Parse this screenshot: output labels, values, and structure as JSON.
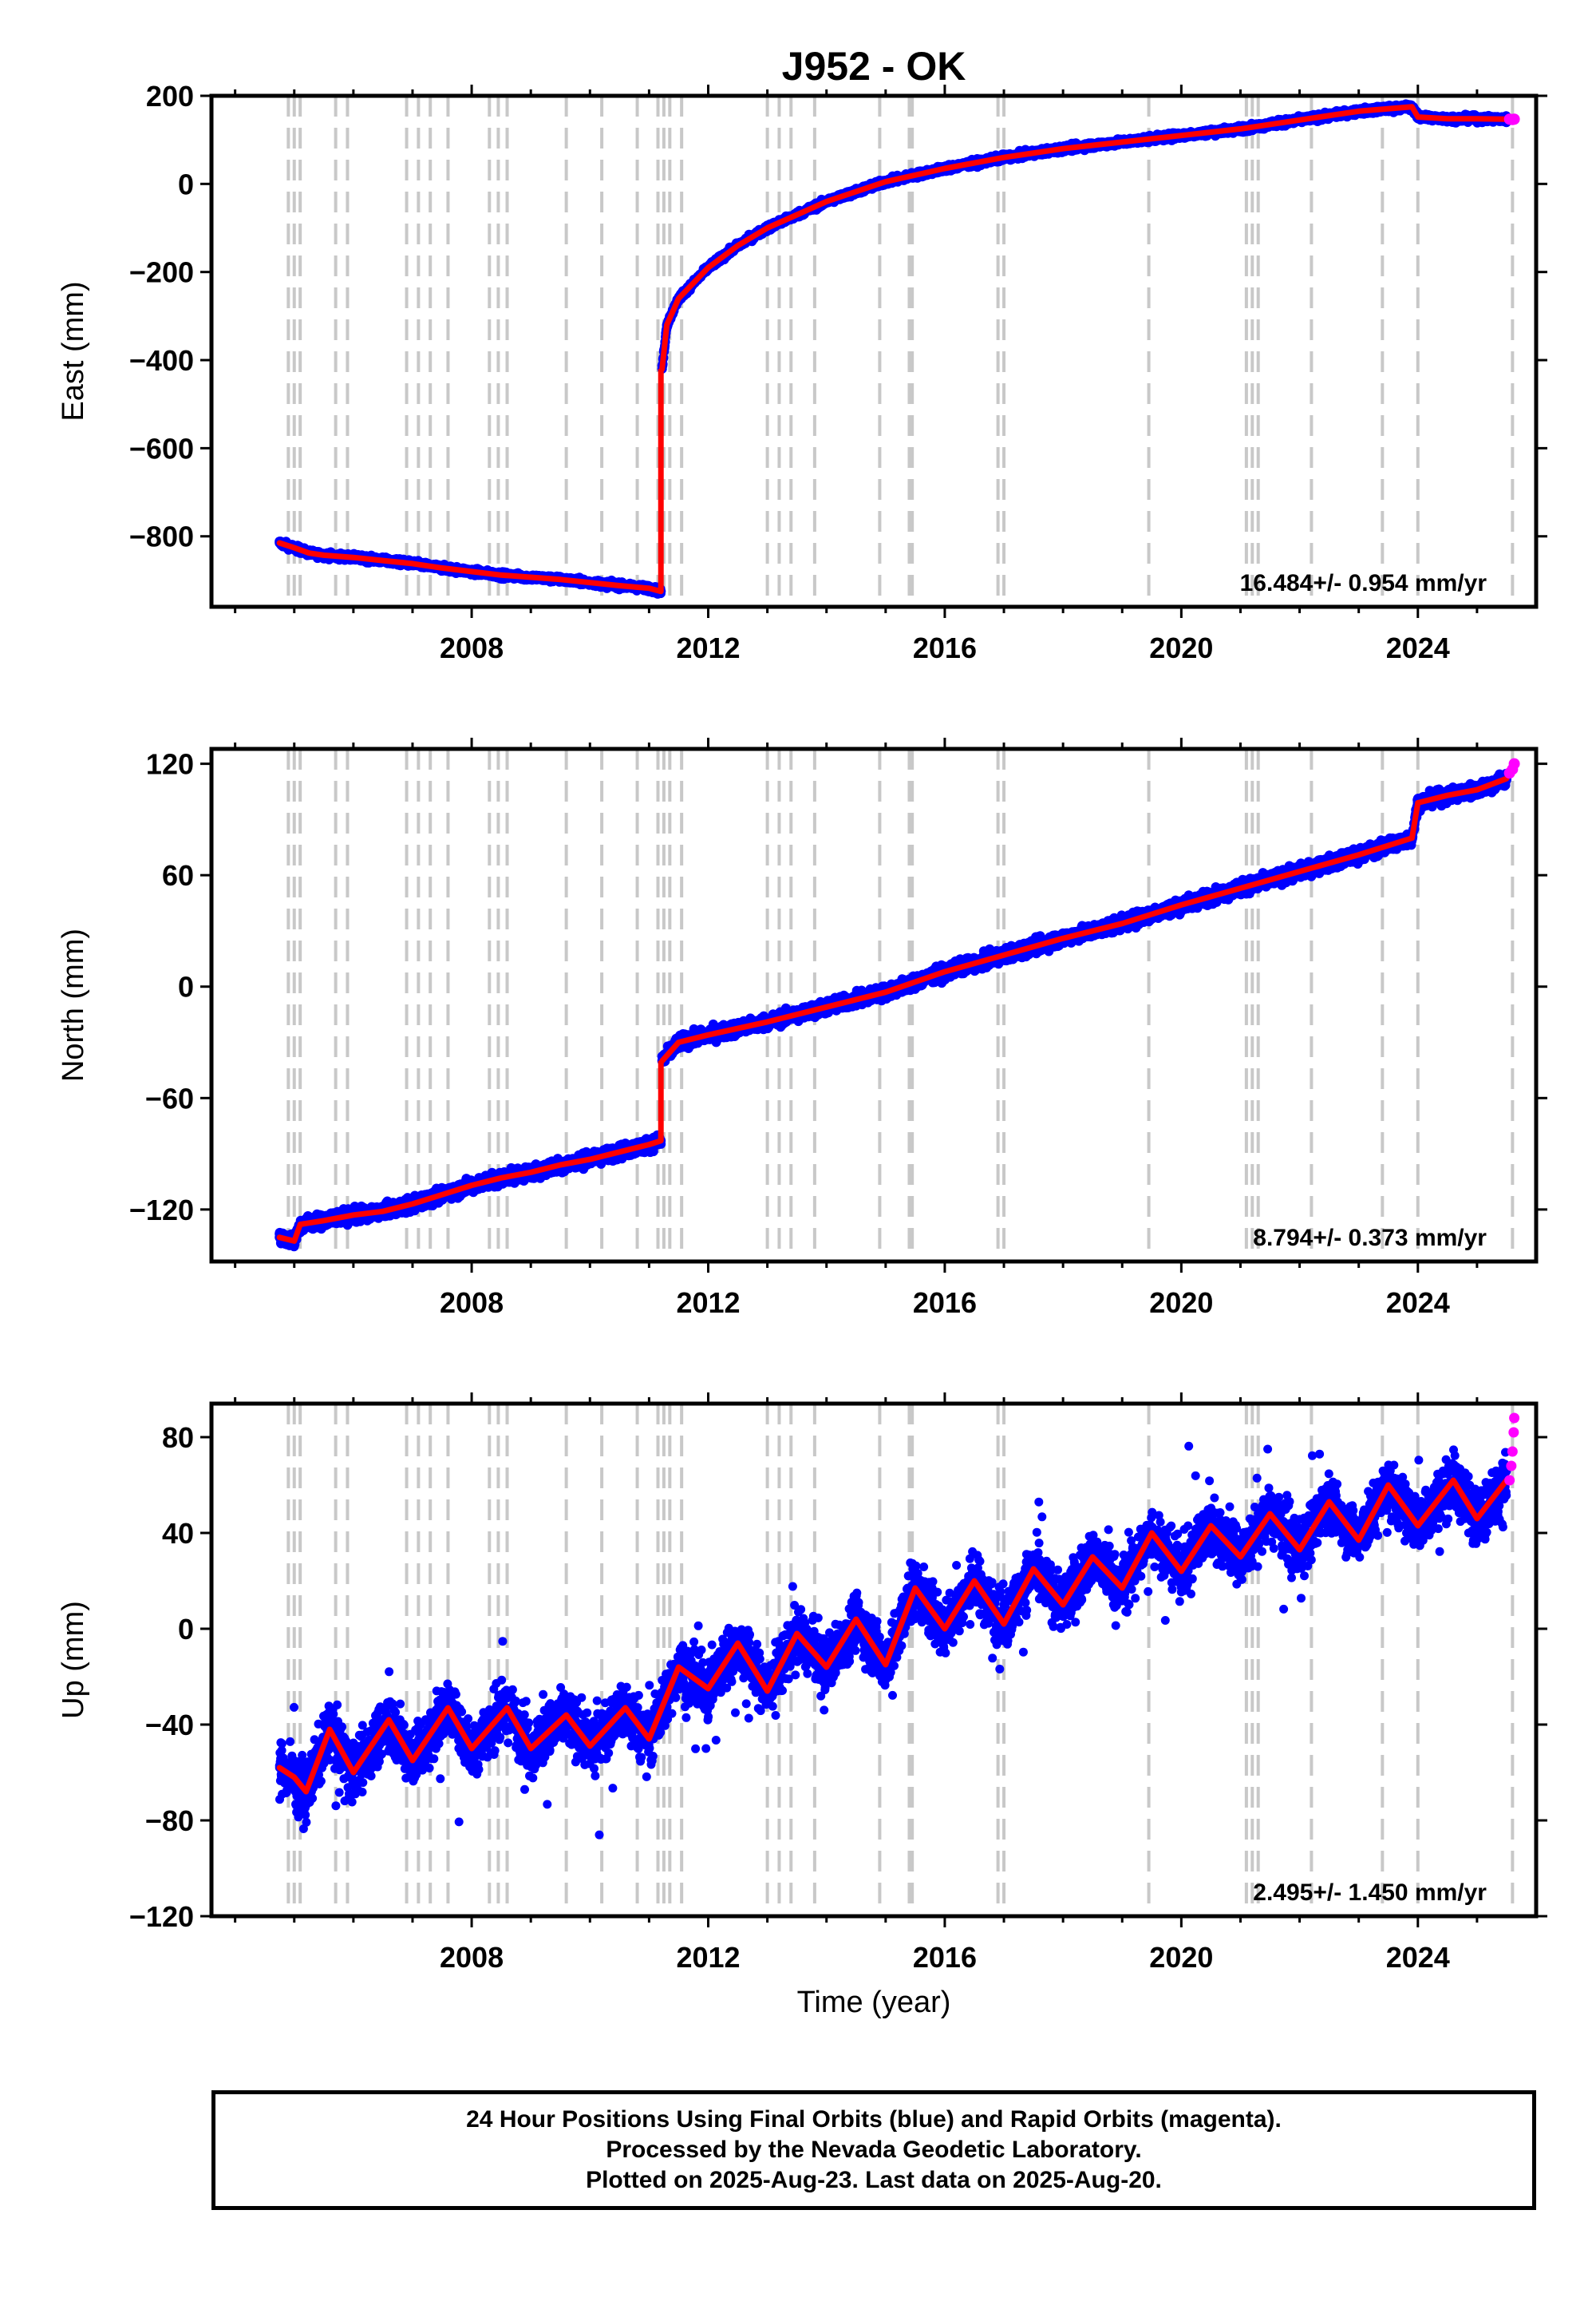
{
  "title": "J952 - OK",
  "xlabel": "Time (year)",
  "x_ticks": [
    "2008",
    "2012",
    "2016",
    "2020",
    "2024"
  ],
  "colors": {
    "final_points": "#0000ff",
    "rapid_points": "#ff00ff",
    "model_line": "#ff0000",
    "event_lines": "#c8c8c8"
  },
  "caption": {
    "line1": "24 Hour Positions Using Final Orbits (blue) and Rapid Orbits (magenta).",
    "line2": "Processed by the Nevada Geodetic Laboratory.",
    "line3": "Plotted on 2025-Aug-23. Last data on 2025-Aug-20."
  },
  "chart_data": [
    {
      "type": "scatter",
      "component": "east",
      "ylabel": "East (mm)",
      "xlim": [
        2003.6,
        2026.0
      ],
      "ylim": [
        -960,
        200
      ],
      "y_ticks": [
        200,
        0,
        -200,
        -400,
        -600,
        -800
      ],
      "rate_text": "16.484+/- 0.954 mm/yr",
      "event_lines_x": [
        2004.9,
        2005.0,
        2005.1,
        2005.7,
        2005.9,
        2006.9,
        2007.1,
        2007.3,
        2007.6,
        2008.3,
        2008.45,
        2008.6,
        2009.6,
        2010.2,
        2010.8,
        2011.15,
        2011.25,
        2011.35,
        2011.55,
        2013.0,
        2013.2,
        2013.4,
        2013.8,
        2014.9,
        2015.4,
        2015.45,
        2016.9,
        2017.0,
        2019.45,
        2021.1,
        2021.2,
        2021.3,
        2022.2,
        2023.4,
        2024.0,
        2025.6
      ],
      "series": [
        {
          "name": "Final Orbits",
          "color": "#0000ff",
          "x": [
            2004.75,
            2005.0,
            2005.25,
            2005.5,
            2006.0,
            2006.5,
            2007.0,
            2007.5,
            2008.0,
            2008.5,
            2009.0,
            2009.5,
            2010.0,
            2010.5,
            2011.0,
            2011.2
          ],
          "y": [
            -815,
            -826,
            -838,
            -843,
            -848,
            -855,
            -862,
            -872,
            -880,
            -888,
            -893,
            -898,
            -905,
            -912,
            -918,
            -925
          ]
        },
        {
          "name": "Final Orbits (post-event)",
          "color": "#0000ff",
          "x": [
            2011.22,
            2011.3,
            2011.5,
            2012.0,
            2012.5,
            2013.0,
            2013.5,
            2014.0,
            2015.0,
            2016.0,
            2017.0,
            2018.0,
            2019.0,
            2020.0,
            2021.0,
            2022.0,
            2023.0,
            2023.9,
            2024.0,
            2024.5,
            2025.0,
            2025.5
          ],
          "y": [
            -420,
            -320,
            -260,
            -190,
            -140,
            -100,
            -70,
            -40,
            5,
            35,
            60,
            80,
            95,
            110,
            125,
            145,
            165,
            175,
            152,
            148,
            148,
            147
          ]
        },
        {
          "name": "Rapid Orbits",
          "color": "#ff00ff",
          "x": [
            2025.55,
            2025.6,
            2025.63
          ],
          "y": [
            147,
            146,
            147
          ]
        }
      ]
    },
    {
      "type": "scatter",
      "component": "north",
      "ylabel": "North (mm)",
      "xlim": [
        2003.6,
        2026.0
      ],
      "ylim": [
        -148,
        128
      ],
      "y_ticks": [
        120,
        60,
        0,
        -60,
        -120
      ],
      "rate_text": "8.794+/- 0.373 mm/yr",
      "event_lines_x": [
        2004.9,
        2005.0,
        2005.1,
        2005.7,
        2005.9,
        2006.9,
        2007.1,
        2007.3,
        2007.6,
        2008.3,
        2008.45,
        2008.6,
        2009.6,
        2010.2,
        2010.8,
        2011.15,
        2011.25,
        2011.35,
        2011.55,
        2013.0,
        2013.2,
        2013.4,
        2013.8,
        2014.9,
        2015.4,
        2015.45,
        2016.9,
        2017.0,
        2019.45,
        2021.1,
        2021.2,
        2021.3,
        2022.2,
        2023.4,
        2024.0,
        2025.6
      ],
      "series": [
        {
          "name": "Final Orbits",
          "color": "#0000ff",
          "x": [
            2004.75,
            2005.0,
            2005.1,
            2005.5,
            2006.0,
            2006.5,
            2007.0,
            2007.5,
            2008.0,
            2008.5,
            2009.0,
            2009.5,
            2010.0,
            2010.5,
            2011.0,
            2011.2
          ],
          "y": [
            -135,
            -137,
            -128,
            -126,
            -123,
            -121,
            -117,
            -112,
            -107,
            -103,
            -100,
            -96,
            -93,
            -89,
            -85,
            -83
          ]
        },
        {
          "name": "Final Orbits (post-event)",
          "color": "#0000ff",
          "x": [
            2011.22,
            2011.5,
            2012.0,
            2013.0,
            2014.0,
            2015.0,
            2016.0,
            2017.0,
            2018.0,
            2019.0,
            2020.0,
            2021.0,
            2022.0,
            2023.0,
            2023.9,
            2024.0,
            2024.5,
            2025.0,
            2025.5
          ],
          "y": [
            -40,
            -30,
            -26,
            -19,
            -11,
            -3,
            8,
            17,
            26,
            34,
            44,
            53,
            62,
            71,
            80,
            99,
            103,
            106,
            112
          ]
        },
        {
          "name": "Rapid Orbits",
          "color": "#ff00ff",
          "x": [
            2025.55,
            2025.6,
            2025.63
          ],
          "y": [
            115,
            117,
            120
          ]
        }
      ]
    },
    {
      "type": "scatter",
      "component": "up",
      "ylabel": "Up (mm)",
      "xlim": [
        2003.6,
        2026.0
      ],
      "ylim": [
        -120,
        94
      ],
      "y_ticks": [
        80,
        40,
        0,
        -40,
        -80,
        -120
      ],
      "rate_text": "2.495+/- 1.450 mm/yr",
      "event_lines_x": [
        2004.9,
        2005.0,
        2005.1,
        2005.7,
        2005.9,
        2006.9,
        2007.1,
        2007.3,
        2007.6,
        2008.3,
        2008.45,
        2008.6,
        2009.6,
        2010.2,
        2010.8,
        2011.15,
        2011.25,
        2011.35,
        2011.55,
        2013.0,
        2013.2,
        2013.4,
        2013.8,
        2014.9,
        2015.4,
        2015.45,
        2016.9,
        2017.0,
        2019.45,
        2021.1,
        2021.2,
        2021.3,
        2022.2,
        2023.4,
        2024.0,
        2025.6
      ],
      "series": [
        {
          "name": "Final Orbits",
          "color": "#0000ff",
          "x": [
            2004.75,
            2005.0,
            2005.2,
            2005.6,
            2006.0,
            2006.6,
            2007.0,
            2007.6,
            2008.0,
            2008.6,
            2009.0,
            2009.6,
            2010.0,
            2010.6,
            2011.0,
            2011.5,
            2012.0,
            2012.5,
            2013.0,
            2013.5,
            2014.0,
            2014.5,
            2015.0,
            2015.5,
            2016.0,
            2016.5,
            2017.0,
            2017.5,
            2018.0,
            2018.5,
            2019.0,
            2019.5,
            2020.0,
            2020.5,
            2021.0,
            2021.5,
            2022.0,
            2022.5,
            2023.0,
            2023.5,
            2024.0,
            2024.6,
            2025.0,
            2025.5
          ],
          "y": [
            -58,
            -62,
            -68,
            -42,
            -60,
            -38,
            -55,
            -33,
            -50,
            -33,
            -50,
            -36,
            -49,
            -33,
            -46,
            -16,
            -25,
            -6,
            -26,
            -2,
            -16,
            4,
            -15,
            17,
            0,
            20,
            2,
            25,
            10,
            30,
            17,
            40,
            24,
            43,
            30,
            48,
            33,
            53,
            37,
            60,
            43,
            62,
            46,
            62
          ]
        },
        {
          "name": "Rapid Orbits",
          "color": "#ff00ff",
          "x": [
            2025.55,
            2025.58,
            2025.6,
            2025.62,
            2025.63
          ],
          "y": [
            62,
            68,
            74,
            82,
            88
          ]
        }
      ]
    }
  ]
}
